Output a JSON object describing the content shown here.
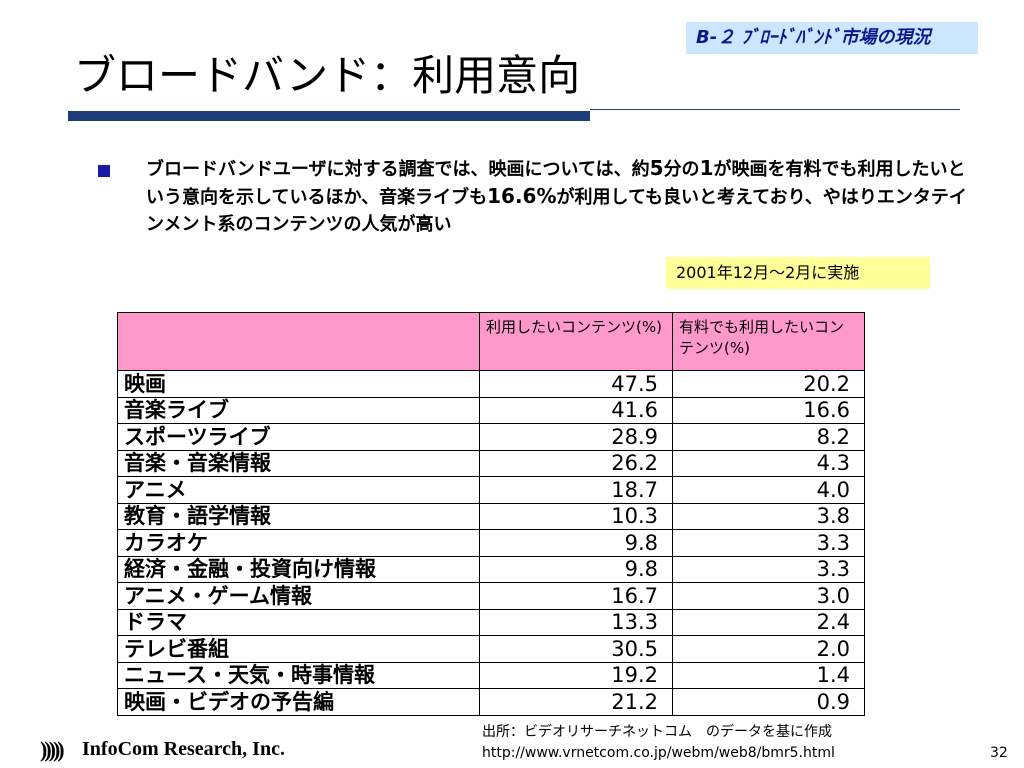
{
  "header": {
    "section_tag": "B-２ ﾌﾞﾛｰﾄﾞﾊﾞﾝﾄﾞ市場の現況",
    "title": "ブロードバンド：利用意向"
  },
  "lead": {
    "part1": "ブロードバンドユーザに対する調査では、映画については、約",
    "num1": "5",
    "part2": "分の",
    "num2": "1",
    "part3": "が映画を有料でも利用したいという意向を示しているほか、音楽ライブも",
    "num3": "16.6%",
    "part4": "が利用しても良いと考えており、やはりエンタテインメント系のコンテンツの人気が高い"
  },
  "survey_note": "2001年12月～2月に実施",
  "table": {
    "col_headers": [
      "利用したいコンテンツ(%)",
      "有料でも利用したいコンテンツ(%)"
    ],
    "rows": [
      {
        "category": "映画",
        "want": "47.5",
        "paid": "20.2"
      },
      {
        "category": "音楽ライブ",
        "want": "41.6",
        "paid": "16.6"
      },
      {
        "category": "スポーツライブ",
        "want": "28.9",
        "paid": "8.2"
      },
      {
        "category": "音楽・音楽情報",
        "want": "26.2",
        "paid": "4.3"
      },
      {
        "category": "アニメ",
        "want": "18.7",
        "paid": "4.0"
      },
      {
        "category": "教育・語学情報",
        "want": "10.3",
        "paid": "3.8"
      },
      {
        "category": "カラオケ",
        "want": "9.8",
        "paid": "3.3"
      },
      {
        "category": "経済・金融・投資向け情報",
        "want": "9.8",
        "paid": "3.3"
      },
      {
        "category": "アニメ・ゲーム情報",
        "want": "16.7",
        "paid": "3.0"
      },
      {
        "category": "ドラマ",
        "want": "13.3",
        "paid": "2.4"
      },
      {
        "category": "テレビ番組",
        "want": "30.5",
        "paid": "2.0"
      },
      {
        "category": "ニュース・天気・時事情報",
        "want": "19.2",
        "paid": "1.4"
      },
      {
        "category": "映画・ビデオの予告編",
        "want": "21.2",
        "paid": "0.9"
      }
    ]
  },
  "footer": {
    "source_line1": "出所：ビデオリサーチネットコム　のデータを基に作成",
    "source_line2": "http://www.vrnetcom.co.jp/webm/web8/bmr5.html",
    "logo_mark": ")))))",
    "company": "InfoCom Research, Inc.",
    "page_number": "32"
  }
}
